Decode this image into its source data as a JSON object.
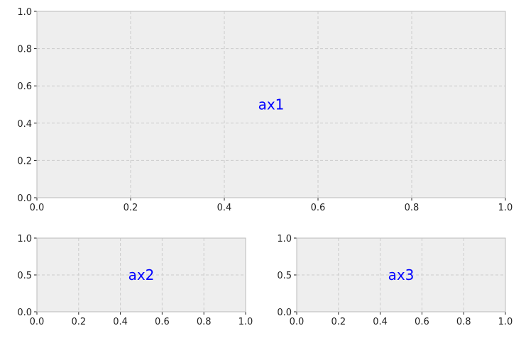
{
  "chart_data": [
    {
      "type": "line",
      "name": "ax1",
      "annotation": "ax1",
      "series": [],
      "xlim": [
        0,
        1
      ],
      "ylim": [
        0,
        1
      ],
      "xticks": [
        "0.0",
        "0.2",
        "0.4",
        "0.6",
        "0.8",
        "1.0"
      ],
      "yticks": [
        "0.0",
        "0.2",
        "0.4",
        "0.6",
        "0.8",
        "1.0"
      ],
      "grid": true,
      "grid_style": "dashed",
      "title": "",
      "xlabel": "",
      "ylabel": ""
    },
    {
      "type": "line",
      "name": "ax2",
      "annotation": "ax2",
      "series": [],
      "xlim": [
        0,
        1
      ],
      "ylim": [
        0,
        1
      ],
      "xticks": [
        "0.0",
        "0.2",
        "0.4",
        "0.6",
        "0.8",
        "1.0"
      ],
      "yticks": [
        "0.0",
        "0.5",
        "1.0"
      ],
      "grid": true,
      "grid_style": "dashed",
      "title": "",
      "xlabel": "",
      "ylabel": ""
    },
    {
      "type": "line",
      "name": "ax3",
      "annotation": "ax3",
      "series": [],
      "xlim": [
        0,
        1
      ],
      "ylim": [
        0,
        1
      ],
      "xticks": [
        "0.0",
        "0.2",
        "0.4",
        "0.6",
        "0.8",
        "1.0"
      ],
      "yticks": [
        "0.0",
        "0.5",
        "1.0"
      ],
      "grid": true,
      "grid_style": "dashed",
      "title": "",
      "xlabel": "",
      "ylabel": ""
    }
  ],
  "colors": {
    "axes_bg": "#eeeeee",
    "grid": "#cccccc",
    "spine": "#bbbbbb",
    "tick": "#222222",
    "annotation": "#0000ff"
  }
}
